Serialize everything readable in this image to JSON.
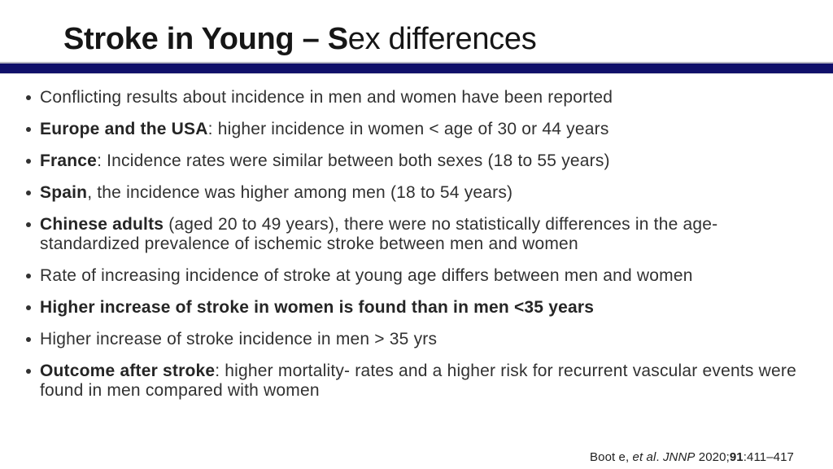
{
  "slide": {
    "title": {
      "bold": "Stroke in Young – S",
      "regular": "ex differences"
    },
    "bullets": [
      {
        "segments": [
          {
            "text": "Conflicting results about incidence in men and women have been reported",
            "bold": false
          }
        ]
      },
      {
        "segments": [
          {
            "text": "Europe and the USA",
            "bold": true
          },
          {
            "text": ": higher incidence in women < age of 30 or 44 years",
            "bold": false
          }
        ]
      },
      {
        "segments": [
          {
            "text": "France",
            "bold": true
          },
          {
            "text": ": Incidence rates were similar between both sexes (18 to 55 years)",
            "bold": false
          }
        ]
      },
      {
        "segments": [
          {
            "text": "Spain",
            "bold": true
          },
          {
            "text": ", the incidence was higher among men (18 to 54 years)",
            "bold": false
          }
        ]
      },
      {
        "segments": [
          {
            "text": "Chinese adults",
            "bold": true
          },
          {
            "text": " (aged 20 to 49 years), there were no statistically differences in the age- standardized prevalence of ischemic stroke between men and women",
            "bold": false
          }
        ]
      },
      {
        "segments": [
          {
            "text": "Rate of increasing incidence of stroke at young age differs between men and women",
            "bold": false
          }
        ]
      },
      {
        "segments": [
          {
            "text": "Higher increase of stroke in women is found than in men <35 years",
            "bold": true
          }
        ]
      },
      {
        "segments": [
          {
            "text": "Higher increase of stroke incidence in men > 35 yrs",
            "bold": false
          }
        ]
      },
      {
        "segments": [
          {
            "text": "Outcome after stroke",
            "bold": true
          },
          {
            "text": ": higher mortality- rates and a higher risk for recurrent vascular events were found in men compared with women",
            "bold": false
          }
        ]
      }
    ],
    "citation": {
      "segments": [
        {
          "text": "Boot e, ",
          "style": "regular"
        },
        {
          "text": "et al",
          "style": "italic"
        },
        {
          "text": ". ",
          "style": "regular"
        },
        {
          "text": "JNNP",
          "style": "italic"
        },
        {
          "text": " 2020;",
          "style": "regular"
        },
        {
          "text": "91",
          "style": "bold"
        },
        {
          "text": ":411–417",
          "style": "regular"
        }
      ]
    },
    "colors": {
      "divider_bar": "#10106a",
      "divider_top_edge": "#b9b9c2",
      "title_text": "#161616",
      "body_text": "#313131",
      "background": "#ffffff"
    }
  }
}
